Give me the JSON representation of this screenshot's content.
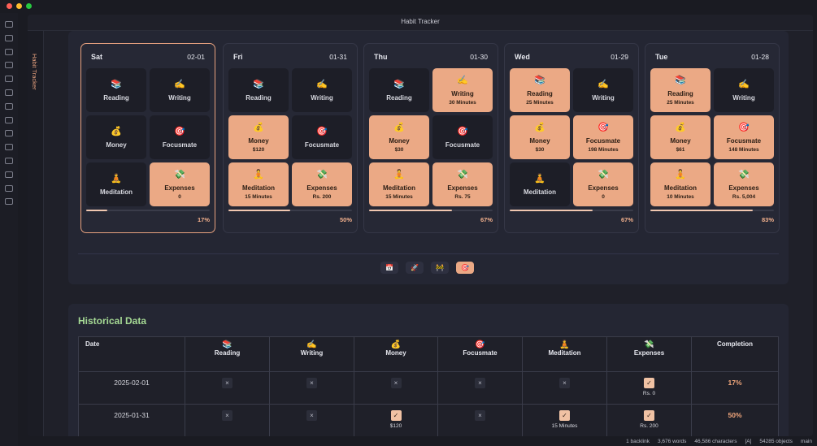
{
  "window": {
    "title": "Habit Tracker"
  },
  "tab": {
    "title": "Habit Tracker"
  },
  "habits": [
    {
      "name": "Reading",
      "icon": "📚"
    },
    {
      "name": "Writing",
      "icon": "✍️"
    },
    {
      "name": "Money",
      "icon": "💰"
    },
    {
      "name": "Focusmate",
      "icon": "🎯"
    },
    {
      "name": "Meditation",
      "icon": "🧘"
    },
    {
      "name": "Expenses",
      "icon": "💸"
    }
  ],
  "marks": {
    "done": "✓",
    "not_done": "×"
  },
  "days": [
    {
      "day": "Sat",
      "date": "02-01",
      "highlighted": true,
      "completion": {
        "value": 17,
        "label": "17%"
      },
      "entries": [
        {
          "done": false
        },
        {
          "done": false
        },
        {
          "done": false
        },
        {
          "done": false
        },
        {
          "done": false
        },
        {
          "done": true,
          "detail": "0"
        }
      ]
    },
    {
      "day": "Fri",
      "date": "01-31",
      "completion": {
        "value": 50,
        "label": "50%"
      },
      "entries": [
        {
          "done": false
        },
        {
          "done": false
        },
        {
          "done": true,
          "detail": "$120"
        },
        {
          "done": false
        },
        {
          "done": true,
          "detail": "15 Minutes"
        },
        {
          "done": true,
          "detail": "Rs. 200"
        }
      ]
    },
    {
      "day": "Thu",
      "date": "01-30",
      "completion": {
        "value": 67,
        "label": "67%"
      },
      "entries": [
        {
          "done": false
        },
        {
          "done": true,
          "detail": "30 Minutes"
        },
        {
          "done": true,
          "detail": "$30"
        },
        {
          "done": false
        },
        {
          "done": true,
          "detail": "15 Minutes"
        },
        {
          "done": true,
          "detail": "Rs. 75"
        }
      ]
    },
    {
      "day": "Wed",
      "date": "01-29",
      "completion": {
        "value": 67,
        "label": "67%"
      },
      "entries": [
        {
          "done": true,
          "detail": "25 Minutes"
        },
        {
          "done": false
        },
        {
          "done": true,
          "detail": "$30"
        },
        {
          "done": true,
          "detail": "198 Minutes"
        },
        {
          "done": false
        },
        {
          "done": true,
          "detail": "0"
        }
      ]
    },
    {
      "day": "Tue",
      "date": "01-28",
      "completion": {
        "value": 83,
        "label": "83%"
      },
      "entries": [
        {
          "done": true,
          "detail": "25 Minutes"
        },
        {
          "done": false
        },
        {
          "done": true,
          "detail": "$61"
        },
        {
          "done": true,
          "detail": "148 Minutes"
        },
        {
          "done": true,
          "detail": "10 Minutes"
        },
        {
          "done": true,
          "detail": "Rs. 5,004"
        }
      ]
    }
  ],
  "view_buttons": [
    "📅",
    "🚀",
    "🚧",
    "🎯"
  ],
  "history": {
    "title": "Historical Data",
    "date_header": "Date",
    "completion_header": "Completion",
    "rows": [
      {
        "date": "2025-02-01",
        "completion": "17%",
        "entries": [
          {
            "done": false
          },
          {
            "done": false
          },
          {
            "done": false
          },
          {
            "done": false
          },
          {
            "done": false
          },
          {
            "done": true,
            "detail": "Rs. 0"
          }
        ]
      },
      {
        "date": "2025-01-31",
        "completion": "50%",
        "entries": [
          {
            "done": false
          },
          {
            "done": false
          },
          {
            "done": true,
            "detail": "$120"
          },
          {
            "done": false
          },
          {
            "done": true,
            "detail": "15 Minutes"
          },
          {
            "done": true,
            "detail": "Rs. 200"
          }
        ]
      }
    ]
  },
  "status_bar": [
    "1 backlink",
    "3,676 words",
    "46,586 characters",
    "[A]",
    "54285 objects",
    "main"
  ]
}
